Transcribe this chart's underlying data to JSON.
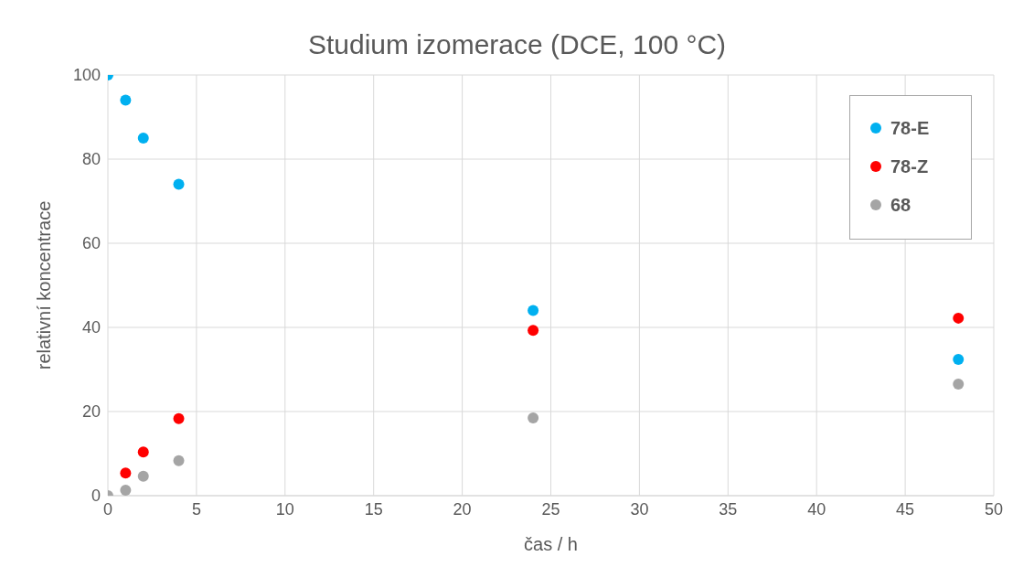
{
  "chart_data": {
    "type": "scatter",
    "title": "Studium izomerace (DCE, 100 °C)",
    "xlabel": "čas / h",
    "ylabel": "relativní koncentrace",
    "x": [
      0,
      1,
      2,
      4,
      24,
      48
    ],
    "series": [
      {
        "name": "78-E",
        "color": "#00b0f0",
        "values": [
          100,
          94,
          85,
          74,
          44,
          32.4
        ]
      },
      {
        "name": "78-Z",
        "color": "#ff0000",
        "values": [
          null,
          5.4,
          10.4,
          18.3,
          39.3,
          42.2
        ]
      },
      {
        "name": "68",
        "color": "#a5a5a5",
        "values": [
          0,
          1.3,
          4.6,
          8.3,
          18.5,
          26.5
        ]
      }
    ],
    "xlim": [
      0,
      50
    ],
    "xticks": [
      0,
      5,
      10,
      15,
      20,
      25,
      30,
      35,
      40,
      45,
      50
    ],
    "ylim": [
      0,
      100
    ],
    "yticks": [
      0,
      20,
      40,
      60,
      80,
      100
    ],
    "grid": true,
    "legend": "top right",
    "marker": "circle"
  }
}
